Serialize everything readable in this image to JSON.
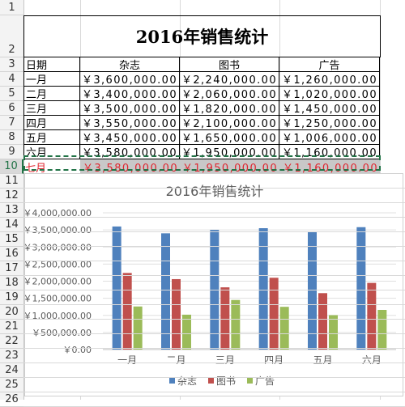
{
  "sheet": {
    "row_numbers": [
      "1",
      "2",
      "3",
      "4",
      "5",
      "6",
      "7",
      "8",
      "9",
      "10",
      "11",
      "12",
      "13",
      "14",
      "15",
      "16",
      "17",
      "18",
      "19",
      "20",
      "21",
      "22",
      "23",
      "24",
      "25",
      "26"
    ],
    "title": "2016年销售统计",
    "headers": [
      "日期",
      "杂志",
      "图书",
      "广告"
    ],
    "rows": [
      {
        "month": "一月",
        "magazine": "￥3,600,000.00",
        "books": "￥2,240,000.00",
        "ads": "￥1,260,000.00"
      },
      {
        "month": "二月",
        "magazine": "￥3,400,000.00",
        "books": "￥2,060,000.00",
        "ads": "￥1,020,000.00"
      },
      {
        "month": "三月",
        "magazine": "￥3,500,000.00",
        "books": "￥1,820,000.00",
        "ads": "￥1,450,000.00"
      },
      {
        "month": "四月",
        "magazine": "￥3,550,000.00",
        "books": "￥2,100,000.00",
        "ads": "￥1,250,000.00"
      },
      {
        "month": "五月",
        "magazine": "￥3,450,000.00",
        "books": "￥1,650,000.00",
        "ads": "￥1,006,000.00"
      },
      {
        "month": "六月",
        "magazine": "￥3,580,000.00",
        "books": "￥1,950,000.00",
        "ads": "￥1,160,000.00"
      },
      {
        "month": "七月",
        "magazine": "￥3,580,000.00",
        "books": "￥1,950,000.00",
        "ads": "￥1,160,000.00"
      }
    ]
  },
  "colors": {
    "magazine": "#4f81bd",
    "books": "#c0504d",
    "ads": "#9bbb59",
    "selection_border": "#217346",
    "highlight_text": "#e0262f"
  },
  "chart_data": {
    "type": "bar",
    "title": "2016年销售统计",
    "categories": [
      "一月",
      "二月",
      "三月",
      "四月",
      "五月",
      "六月"
    ],
    "series": [
      {
        "name": "杂志",
        "values": [
          3600000,
          3400000,
          3500000,
          3550000,
          3450000,
          3580000
        ]
      },
      {
        "name": "图书",
        "values": [
          2240000,
          2060000,
          1820000,
          2100000,
          1650000,
          1950000
        ]
      },
      {
        "name": "广告",
        "values": [
          1260000,
          1020000,
          1450000,
          1250000,
          1006000,
          1160000
        ]
      }
    ],
    "ylim": [
      0,
      4000000
    ],
    "yticks": [
      "￥0.00",
      "￥500,000.00",
      "￥1,000,000.00",
      "￥1,500,000.00",
      "￥2,000,000.00",
      "￥2,500,000.00",
      "￥3,000,000.00",
      "￥3,500,000.00",
      "￥4,000,000.00"
    ],
    "grid": true,
    "legend": "bottom"
  }
}
